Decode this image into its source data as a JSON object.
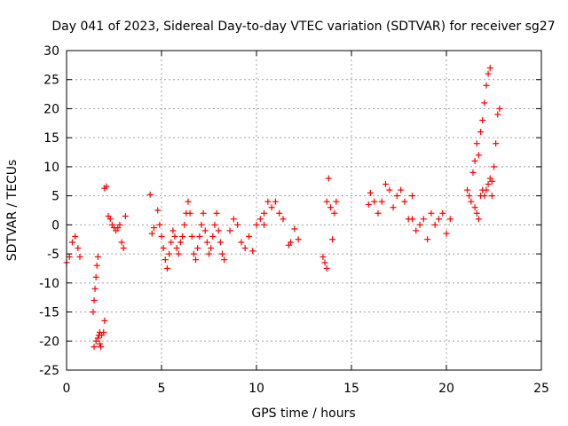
{
  "chart_data": {
    "type": "scatter",
    "title": "Day 041 of 2023, Sidereal Day-to-day VTEC variation (SDTVAR) for receiver sg27",
    "xlabel": "GPS time / hours",
    "ylabel": "SDTVAR / TECUs",
    "xlim": [
      0,
      25
    ],
    "ylim": [
      -25,
      30
    ],
    "xticks": [
      "0",
      "5",
      "10",
      "15",
      "20",
      "25"
    ],
    "yticks": [
      "-25",
      "-20",
      "-15",
      "-10",
      "-5",
      "0",
      "5",
      "10",
      "15",
      "20",
      "25",
      "30"
    ],
    "grid": true,
    "marker": "+",
    "color": "#ff0000",
    "segments": [
      {
        "x": [
          0.0,
          0.15,
          0.3,
          0.45,
          0.6,
          0.7
        ],
        "y": [
          -6.5,
          -5.5,
          -3,
          -2,
          -4,
          -5.5
        ]
      },
      {
        "x": [
          1.4,
          1.45,
          1.5,
          1.55,
          1.6,
          1.65,
          1.7,
          1.75,
          1.8
        ],
        "y": [
          -15,
          -13,
          -11,
          -9,
          -7,
          -5.5,
          -19,
          -20.5,
          -21
        ]
      },
      {
        "x": [
          1.45,
          1.55,
          1.65,
          1.75,
          1.85,
          1.95,
          2.0
        ],
        "y": [
          -21,
          -20,
          -19.5,
          -18.5,
          -19,
          -18.5,
          -16.5
        ]
      },
      {
        "x": [
          2.0,
          2.1
        ],
        "y": [
          6.3,
          6.6
        ]
      },
      {
        "x": [
          2.2,
          2.3,
          2.4,
          2.5,
          2.6,
          2.7,
          2.8,
          2.9,
          3.0,
          3.1
        ],
        "y": [
          1.5,
          1,
          0,
          -0.5,
          -1,
          -0.5,
          0,
          -3,
          -4,
          1.5
        ]
      },
      {
        "x": [
          4.4,
          4.5,
          4.6
        ],
        "y": [
          5.2,
          -1.5,
          -0.5
        ]
      },
      {
        "x": [
          4.8,
          4.9,
          5.0,
          5.1,
          5.2,
          5.3,
          5.4,
          5.5,
          5.6,
          5.7,
          5.8,
          5.9,
          6.0,
          6.1,
          6.2,
          6.3,
          6.4,
          6.5,
          6.6,
          6.7,
          6.8,
          6.9,
          7.0,
          7.1,
          7.2,
          7.3,
          7.4,
          7.5,
          7.6,
          7.7,
          7.8,
          7.9,
          8.0,
          8.1,
          8.2,
          8.3
        ],
        "y": [
          2.5,
          0,
          -2,
          -4,
          -6,
          -7.5,
          -5,
          -3,
          -1,
          -2,
          -4,
          -5,
          -3,
          -2,
          0,
          2,
          4,
          2,
          -2,
          -5,
          -6,
          -4,
          -2,
          0,
          2,
          -1,
          -3,
          -5,
          -4,
          -2,
          0,
          2,
          -1,
          -3,
          -5,
          -6
        ]
      },
      {
        "x": [
          8.6,
          8.8,
          9.0,
          9.2,
          9.4,
          9.6,
          9.8,
          10.0,
          10.2,
          10.4
        ],
        "y": [
          -1,
          1,
          0,
          -3,
          -4,
          -2,
          -4.5,
          0,
          1,
          0
        ]
      },
      {
        "x": [
          10.4,
          10.6,
          10.8,
          11.0,
          11.2,
          11.4
        ],
        "y": [
          2,
          4,
          3,
          4,
          2,
          1
        ]
      },
      {
        "x": [
          11.7,
          11.8,
          12.0,
          12.2
        ],
        "y": [
          -3.5,
          -3,
          -0.7,
          -2.5
        ]
      },
      {
        "x": [
          13.5,
          13.6,
          13.7
        ],
        "y": [
          -5.5,
          -6.5,
          -7.5
        ]
      },
      {
        "x": [
          13.7,
          13.8,
          13.9,
          14.0,
          14.1,
          14.2
        ],
        "y": [
          4,
          8,
          3,
          -2.5,
          2,
          4
        ]
      },
      {
        "x": [
          15.9,
          16.0,
          16.2,
          16.4,
          16.6,
          16.8,
          17.0,
          17.2,
          17.4,
          17.6,
          17.8,
          18.0,
          18.2
        ],
        "y": [
          3.5,
          5.5,
          4,
          2,
          4,
          7,
          6,
          3,
          5,
          6,
          4,
          1,
          5
        ]
      },
      {
        "x": [
          18.2,
          18.4,
          18.6,
          18.8,
          19.0,
          19.2,
          19.4,
          19.6,
          19.8,
          20.0,
          20.2
        ],
        "y": [
          1,
          -1,
          0,
          1,
          -2.5,
          2,
          0,
          1,
          2,
          -1.5,
          1
        ]
      },
      {
        "x": [
          21.1,
          21.2,
          21.3,
          21.4,
          21.5,
          21.6,
          21.7,
          21.8,
          21.9,
          22.0,
          22.1,
          22.2,
          22.3,
          22.4,
          22.5,
          22.6,
          22.7,
          22.8
        ],
        "y": [
          6,
          5,
          4,
          9,
          11,
          14,
          12,
          16,
          18,
          21,
          24,
          26,
          27,
          5,
          10,
          14,
          19,
          20
        ]
      },
      {
        "x": [
          21.5,
          21.6,
          21.7,
          21.8,
          21.9,
          22.0,
          22.1,
          22.2,
          22.3,
          22.4
        ],
        "y": [
          3,
          2,
          1,
          5,
          6,
          5,
          6,
          7,
          8,
          7.5
        ]
      }
    ]
  }
}
